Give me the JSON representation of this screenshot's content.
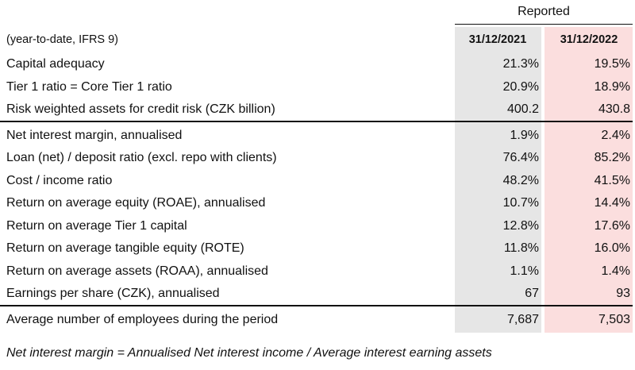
{
  "header": {
    "reported": "Reported",
    "period_label": "(year-to-date, IFRS 9)",
    "date_2021": "31/12/2021",
    "date_2022": "31/12/2022"
  },
  "rows": [
    {
      "label": "Capital adequacy",
      "v2021": "21.3%",
      "v2022": "19.5%"
    },
    {
      "label": "Tier 1 ratio = Core Tier 1 ratio",
      "v2021": "20.9%",
      "v2022": "18.9%"
    },
    {
      "label": "Risk weighted assets for credit risk (CZK billion)",
      "v2021": "400.2",
      "v2022": "430.8"
    },
    {
      "label": "Net interest margin, annualised",
      "v2021": "1.9%",
      "v2022": "2.4%"
    },
    {
      "label": "Loan (net) / deposit ratio (excl. repo with clients)",
      "v2021": "76.4%",
      "v2022": "85.2%"
    },
    {
      "label": "Cost / income ratio",
      "v2021": "48.2%",
      "v2022": "41.5%"
    },
    {
      "label": "Return on average equity (ROAE), annualised",
      "v2021": "10.7%",
      "v2022": "14.4%"
    },
    {
      "label": "Return on average Tier 1 capital",
      "v2021": "12.8%",
      "v2022": "17.6%"
    },
    {
      "label": "Return on average tangible equity (ROTE)",
      "v2021": "11.8%",
      "v2022": "16.0%"
    },
    {
      "label": "Return on average assets (ROAA), annualised",
      "v2021": "1.1%",
      "v2022": "1.4%"
    },
    {
      "label": "Earnings per share (CZK), annualised",
      "v2021": "67",
      "v2022": "93"
    },
    {
      "label": "Average number of employees during the period",
      "v2021": "7,687",
      "v2022": "7,503"
    }
  ],
  "footnote": "Net interest margin = Annualised Net interest income / Average interest earning assets",
  "colors": {
    "column_2021_bg": "#e6e6e6",
    "column_2022_bg": "#fbdede",
    "rule": "#111111"
  }
}
